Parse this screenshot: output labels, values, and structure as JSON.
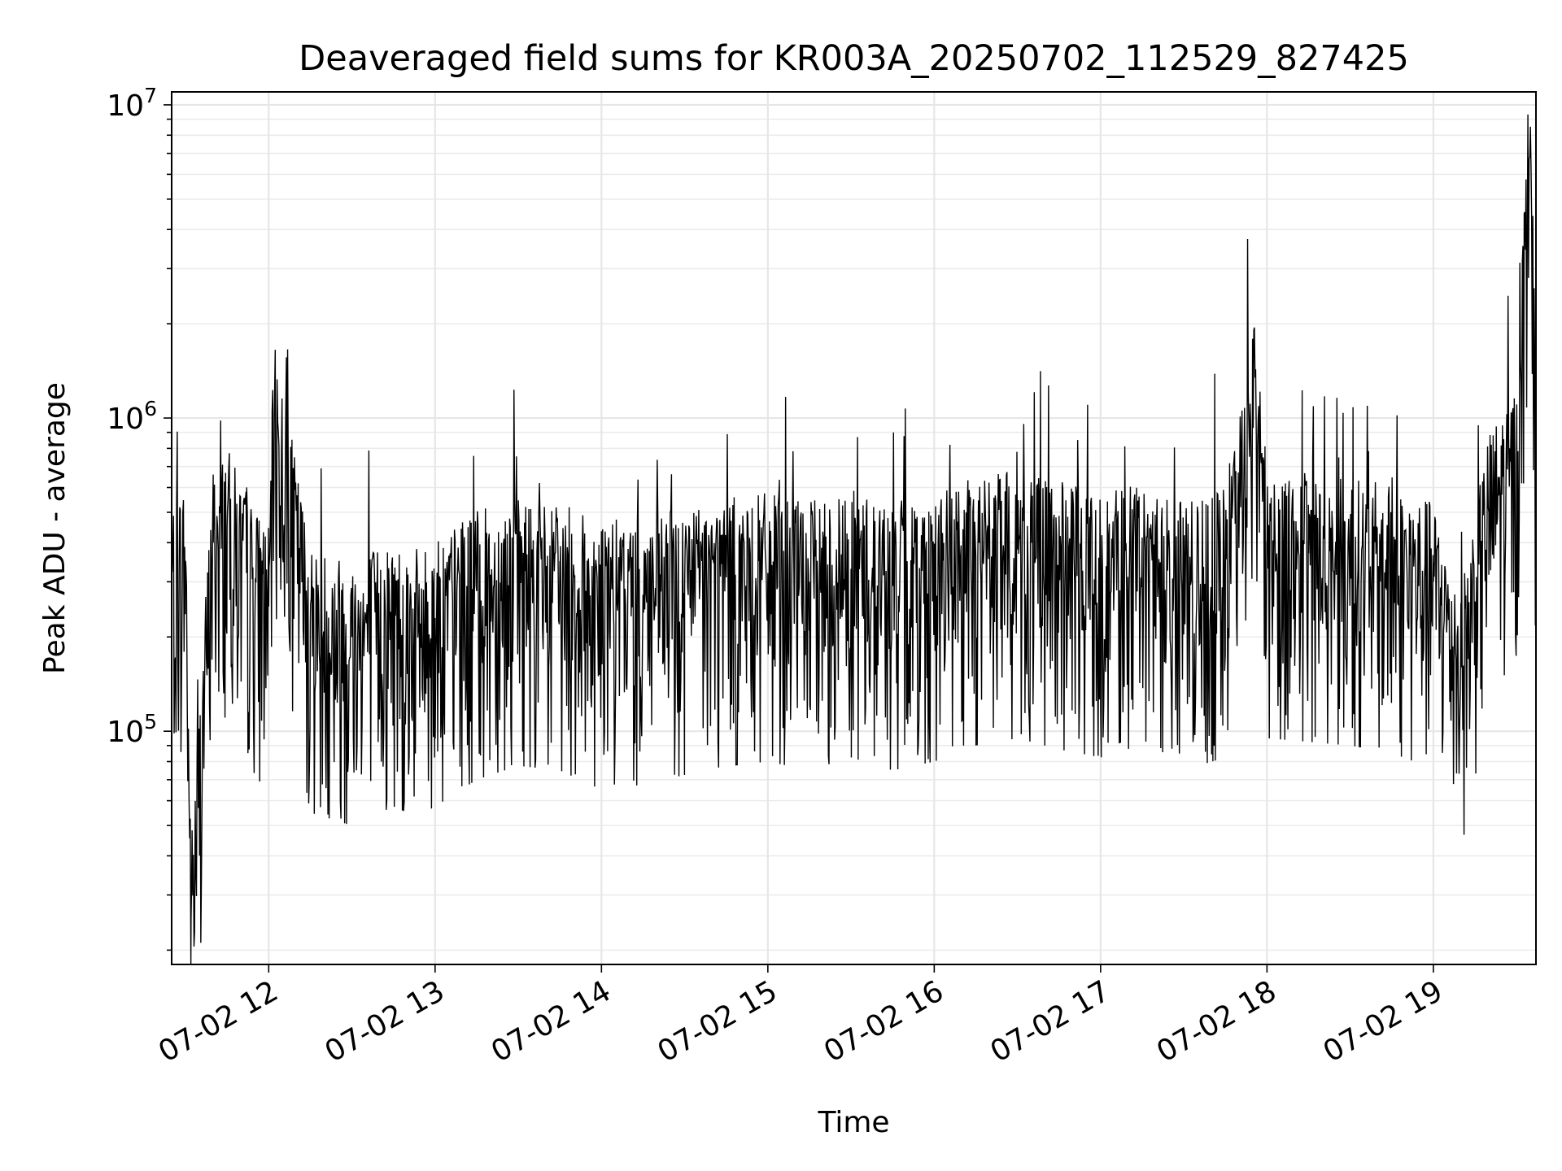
{
  "chart_data": {
    "type": "line",
    "title": "Deaveraged field sums for KR003A_20250702_112529_827425",
    "xlabel": "Time",
    "ylabel": "Peak ADU - average",
    "x_tick_labels": [
      "07-02 12",
      "07-02 13",
      "07-02 14",
      "07-02 15",
      "07-02 16",
      "07-02 17",
      "07-02 18",
      "07-02 19"
    ],
    "y_tick_labels": [
      {
        "base": "10",
        "exp": "5"
      },
      {
        "base": "10",
        "exp": "6"
      },
      {
        "base": "10",
        "exp": "7"
      }
    ],
    "x_range": [
      "2025-07-02 11:25",
      "2025-07-02 19:37"
    ],
    "ylim": [
      18000,
      11000000
    ],
    "yscale": "log",
    "grid": true,
    "line_color": "#000000",
    "series": [
      {
        "x": [
          "2025-07-02 11:25",
          "2025-07-02 11:30",
          "2025-07-02 11:32",
          "2025-07-02 11:40",
          "2025-07-02 11:45",
          "2025-07-02 11:52",
          "2025-07-02 12:00",
          "2025-07-02 12:02",
          "2025-07-02 12:15",
          "2025-07-02 12:30",
          "2025-07-02 12:45",
          "2025-07-02 12:55",
          "2025-07-02 13:00",
          "2025-07-02 13:15",
          "2025-07-02 13:30",
          "2025-07-02 13:45",
          "2025-07-02 14:00",
          "2025-07-02 14:15",
          "2025-07-02 14:30",
          "2025-07-02 14:45",
          "2025-07-02 15:00",
          "2025-07-02 15:15",
          "2025-07-02 15:30",
          "2025-07-02 15:45",
          "2025-07-02 16:00",
          "2025-07-02 16:15",
          "2025-07-02 16:30",
          "2025-07-02 16:45",
          "2025-07-02 17:00",
          "2025-07-02 17:15",
          "2025-07-02 17:30",
          "2025-07-02 17:45",
          "2025-07-02 17:55",
          "2025-07-02 18:00",
          "2025-07-02 18:15",
          "2025-07-02 18:30",
          "2025-07-02 18:45",
          "2025-07-02 19:00",
          "2025-07-02 19:10",
          "2025-07-02 19:20",
          "2025-07-02 19:30",
          "2025-07-02 19:35",
          "2025-07-02 19:37"
        ],
        "y": [
          300000,
          350000,
          25000,
          400000,
          450000,
          320000,
          250000,
          1000000,
          220000,
          200000,
          230000,
          210000,
          230000,
          280000,
          310000,
          300000,
          260000,
          270000,
          290000,
          310000,
          320000,
          300000,
          330000,
          300000,
          320000,
          360000,
          380000,
          350000,
          330000,
          340000,
          300000,
          330000,
          1300000,
          380000,
          370000,
          360000,
          340000,
          300000,
          160000,
          500000,
          700000,
          8500000,
          600000
        ]
      }
    ]
  }
}
